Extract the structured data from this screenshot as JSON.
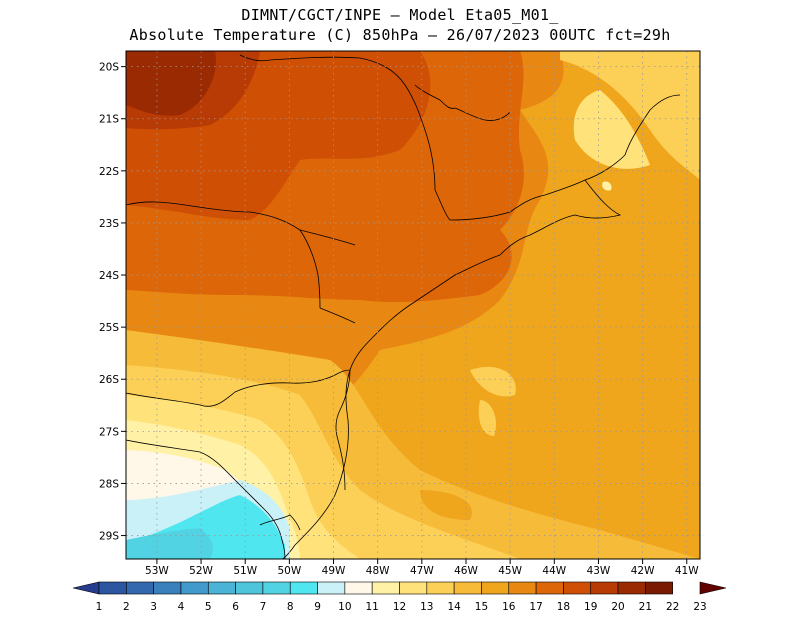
{
  "header": {
    "line1": "DIMNT/CGCT/INPE –  Model Eta05_M01_",
    "line2": "Absolute Temperature (C) 850hPa –  26/07/2023 00UTC fct=29h"
  },
  "map": {
    "lon_range": [
      -53.7,
      -40.7
    ],
    "lat_range": [
      -29.45,
      -19.7
    ],
    "lat_labels": [
      "20S",
      "21S",
      "22S",
      "23S",
      "24S",
      "25S",
      "26S",
      "27S",
      "28S",
      "29S"
    ],
    "lon_labels": [
      "53W",
      "52W",
      "51W",
      "50W",
      "49W",
      "48W",
      "47W",
      "46W",
      "45W",
      "44W",
      "43W",
      "42W",
      "41W"
    ],
    "gridlines": "dotted"
  },
  "colorbar": {
    "labels": [
      "1",
      "2",
      "3",
      "4",
      "5",
      "6",
      "7",
      "8",
      "9",
      "10",
      "11",
      "12",
      "13",
      "14",
      "15",
      "16",
      "17",
      "18",
      "19",
      "20",
      "21",
      "22",
      "23"
    ],
    "colors": [
      "#253d8c",
      "#2c569f",
      "#3468ae",
      "#3a80bd",
      "#419acb",
      "#4bb3d6",
      "#4fc5dc",
      "#52d3e3",
      "#4fe6ef",
      "#c9f1f7",
      "#fff7e8",
      "#fff2a6",
      "#ffe27a",
      "#fccf57",
      "#f6bb38",
      "#efa61d",
      "#e88812",
      "#dd6608",
      "#cf4f05",
      "#b83a04",
      "#9a2a02",
      "#7b1a02",
      "#620000"
    ]
  }
}
